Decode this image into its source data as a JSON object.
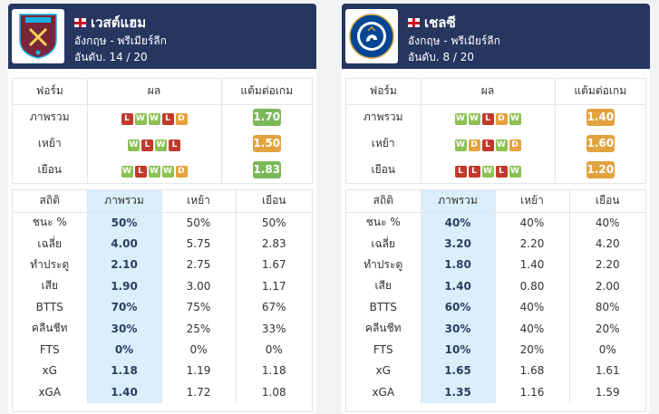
{
  "teams": [
    {
      "name": "เวสต์แฮม",
      "league": "อังกฤษ - พรีเมียร์ลีก",
      "rank": "อันดับ. 14 / 20",
      "crest": "west-ham-crest",
      "crest_text": "WEST HAM UNITED",
      "form_header": {
        "form": "ฟอร์ม",
        "result": "ผล",
        "ppg": "แต้มต่อเกม"
      },
      "form_rows": [
        {
          "label": "ภาพรวม",
          "results": [
            "L",
            "W",
            "W",
            "L",
            "D"
          ],
          "ppg": "1.70",
          "ppg_color": "#7cb85a"
        },
        {
          "label": "เหย้า",
          "results": [
            "W",
            "L",
            "W",
            "L"
          ],
          "ppg": "1.50",
          "ppg_color": "#e2a33f"
        },
        {
          "label": "เยือน",
          "results": [
            "W",
            "L",
            "W",
            "W",
            "D"
          ],
          "ppg": "1.83",
          "ppg_color": "#7cb85a"
        }
      ],
      "stats_header": {
        "stat": "สถิติ",
        "overall": "ภาพรวม",
        "home": "เหย้า",
        "away": "เยือน"
      },
      "stats": [
        {
          "label": "ชนะ %",
          "overall": "50%",
          "home": "50%",
          "away": "50%"
        },
        {
          "label": "เฉลี่ย",
          "overall": "4.00",
          "home": "5.75",
          "away": "2.83"
        },
        {
          "label": "ทำประตู",
          "overall": "2.10",
          "home": "2.75",
          "away": "1.67"
        },
        {
          "label": "เสีย",
          "overall": "1.90",
          "home": "3.00",
          "away": "1.17"
        },
        {
          "label": "BTTS",
          "overall": "70%",
          "home": "75%",
          "away": "67%"
        },
        {
          "label": "คลีนชีท",
          "overall": "30%",
          "home": "25%",
          "away": "33%"
        },
        {
          "label": "FTS",
          "overall": "0%",
          "home": "0%",
          "away": "0%"
        },
        {
          "label": "xG",
          "overall": "1.18",
          "home": "1.19",
          "away": "1.18"
        },
        {
          "label": "xGA",
          "overall": "1.40",
          "home": "1.72",
          "away": "1.08"
        }
      ]
    },
    {
      "name": "เชลซี",
      "league": "อังกฤษ - พรีเมียร์ลีก",
      "rank": "อันดับ. 8 / 20",
      "crest": "chelsea-crest",
      "crest_text": "CHELSEA",
      "form_header": {
        "form": "ฟอร์ม",
        "result": "ผล",
        "ppg": "แต้มต่อเกม"
      },
      "form_rows": [
        {
          "label": "ภาพรวม",
          "results": [
            "W",
            "W",
            "L",
            "D",
            "W"
          ],
          "ppg": "1.40",
          "ppg_color": "#e2a33f"
        },
        {
          "label": "เหย้า",
          "results": [
            "W",
            "D",
            "L",
            "W",
            "D"
          ],
          "ppg": "1.60",
          "ppg_color": "#e2a33f"
        },
        {
          "label": "เยือน",
          "results": [
            "L",
            "L",
            "W",
            "L",
            "W"
          ],
          "ppg": "1.20",
          "ppg_color": "#e2a33f"
        }
      ],
      "stats_header": {
        "stat": "สถิติ",
        "overall": "ภาพรวม",
        "home": "เหย้า",
        "away": "เยือน"
      },
      "stats": [
        {
          "label": "ชนะ %",
          "overall": "40%",
          "home": "40%",
          "away": "40%"
        },
        {
          "label": "เฉลี่ย",
          "overall": "3.20",
          "home": "2.20",
          "away": "4.20"
        },
        {
          "label": "ทำประตู",
          "overall": "1.80",
          "home": "1.40",
          "away": "2.20"
        },
        {
          "label": "เสีย",
          "overall": "1.40",
          "home": "0.80",
          "away": "2.00"
        },
        {
          "label": "BTTS",
          "overall": "60%",
          "home": "40%",
          "away": "80%"
        },
        {
          "label": "คลีนชีท",
          "overall": "30%",
          "home": "40%",
          "away": "20%"
        },
        {
          "label": "FTS",
          "overall": "10%",
          "home": "20%",
          "away": "0%"
        },
        {
          "label": "xG",
          "overall": "1.65",
          "home": "1.68",
          "away": "1.61"
        },
        {
          "label": "xGA",
          "overall": "1.35",
          "home": "1.16",
          "away": "1.59"
        }
      ]
    }
  ]
}
